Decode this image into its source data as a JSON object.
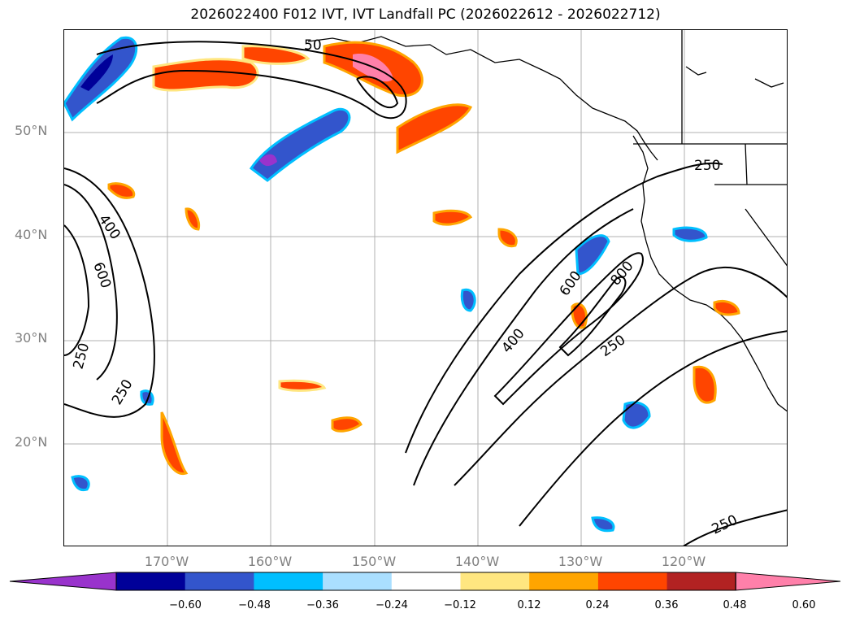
{
  "title": "2026022400 F012 IVT, IVT Landfall PC (2026022612 - 2026022712)",
  "lat_labels": [
    "50°N",
    "40°N",
    "30°N",
    "20°N"
  ],
  "lon_labels": [
    "170°W",
    "160°W",
    "150°W",
    "140°W",
    "130°W",
    "120°W"
  ],
  "contour_labels": {
    "c400_left": "400",
    "c600_left": "600",
    "c250_left_a": "250",
    "c250_left_b": "250",
    "c250_top": "50",
    "c250_right_top": "250",
    "c600_right": "600",
    "c800_right": "800",
    "c400_right": "400",
    "c250_right": "250",
    "c250_bottom": "250"
  },
  "colorbar": {
    "ticks": [
      "−0.60",
      "−0.48",
      "−0.36",
      "−0.24",
      "−0.12",
      "0.12",
      "0.24",
      "0.36",
      "0.48",
      "0.60"
    ],
    "colors": [
      "#9933cc",
      "#000099",
      "#3355cc",
      "#00bfff",
      "#aadfff",
      "#ffffff",
      "#ffe680",
      "#ffa500",
      "#ff4500",
      "#b22222",
      "#ff80aa"
    ]
  }
}
